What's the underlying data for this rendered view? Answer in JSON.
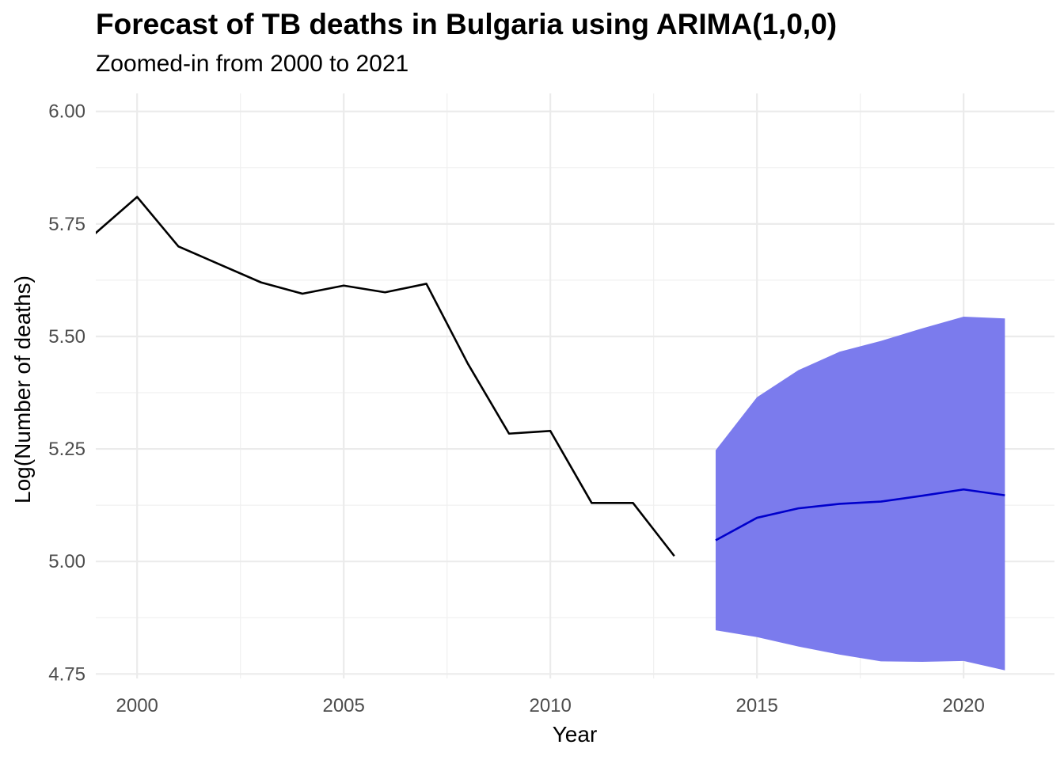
{
  "chart_data": {
    "type": "line",
    "title": "Forecast of TB deaths in Bulgaria using ARIMA(1,0,0)",
    "subtitle": "Zoomed-in from 2000 to 2021",
    "xlabel": "Year",
    "ylabel": "Log(Number of deaths)",
    "xlim": [
      1999,
      2022.2
    ],
    "ylim": [
      4.74,
      6.04
    ],
    "x_ticks": [
      2000,
      2005,
      2010,
      2015,
      2020
    ],
    "y_ticks": [
      4.75,
      5.0,
      5.25,
      5.5,
      5.75,
      6.0
    ],
    "y_tick_labels": [
      "4.75",
      "5.00",
      "5.25",
      "5.50",
      "5.75",
      "6.00"
    ],
    "grid": true,
    "series": [
      {
        "color": "#000000",
        "x": [
          1998,
          2000,
          2001,
          2002,
          2003,
          2004,
          2005,
          2006,
          2007,
          2008,
          2009,
          2010,
          2011,
          2012,
          2013
        ],
        "y": [
          5.65,
          5.81,
          5.7,
          5.66,
          5.62,
          5.595,
          5.613,
          5.598,
          5.617,
          5.44,
          5.284,
          5.29,
          5.13,
          5.13,
          5.012
        ]
      },
      {
        "color": "#0000cc",
        "x": [
          2014,
          2015,
          2016,
          2017,
          2018,
          2019,
          2020,
          2021
        ],
        "y": [
          5.047,
          5.097,
          5.118,
          5.128,
          5.133,
          5.146,
          5.16,
          5.147
        ]
      }
    ],
    "bands": [
      {
        "color": "#7b7bed",
        "x": [
          2014,
          2015,
          2016,
          2017,
          2018,
          2019,
          2020,
          2021
        ],
        "lower": [
          4.847,
          4.832,
          4.811,
          4.793,
          4.778,
          4.777,
          4.779,
          4.758
        ],
        "upper": [
          5.247,
          5.365,
          5.425,
          5.466,
          5.49,
          5.518,
          5.544,
          5.54
        ]
      }
    ]
  }
}
